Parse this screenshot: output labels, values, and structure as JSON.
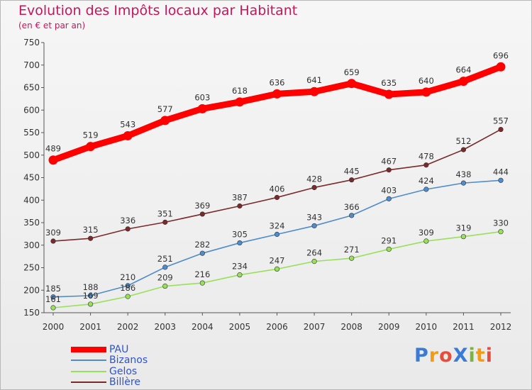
{
  "title": "Evolution des Impôts locaux par Habitant",
  "subtitle": "(en € et par an)",
  "logo": "ProXiti",
  "chart_data": {
    "type": "line",
    "x": [
      "2000",
      "2001",
      "2002",
      "2003",
      "2004",
      "2005",
      "2006",
      "2007",
      "2008",
      "2009",
      "2010",
      "2011",
      "2012"
    ],
    "ylim": [
      150,
      750
    ],
    "yticks": [
      150,
      200,
      250,
      300,
      350,
      400,
      450,
      500,
      550,
      600,
      650,
      700,
      750
    ],
    "grid": false,
    "legend_position": "bottom-left",
    "series": [
      {
        "name": "PAU",
        "color": "#ff0000",
        "values": [
          489,
          519,
          543,
          577,
          603,
          618,
          636,
          641,
          659,
          635,
          640,
          664,
          696
        ]
      },
      {
        "name": "Bizanos",
        "color": "#4f8cc9",
        "values": [
          185,
          188,
          210,
          251,
          282,
          305,
          324,
          343,
          366,
          403,
          424,
          438,
          444
        ]
      },
      {
        "name": "Gelos",
        "color": "#99e05a",
        "values": [
          161,
          169,
          186,
          209,
          216,
          234,
          247,
          264,
          271,
          291,
          309,
          319,
          330
        ]
      },
      {
        "name": "Billère",
        "color": "#7a2a2a",
        "values": [
          309,
          315,
          336,
          351,
          369,
          387,
          406,
          428,
          445,
          467,
          478,
          512,
          557
        ]
      }
    ]
  }
}
